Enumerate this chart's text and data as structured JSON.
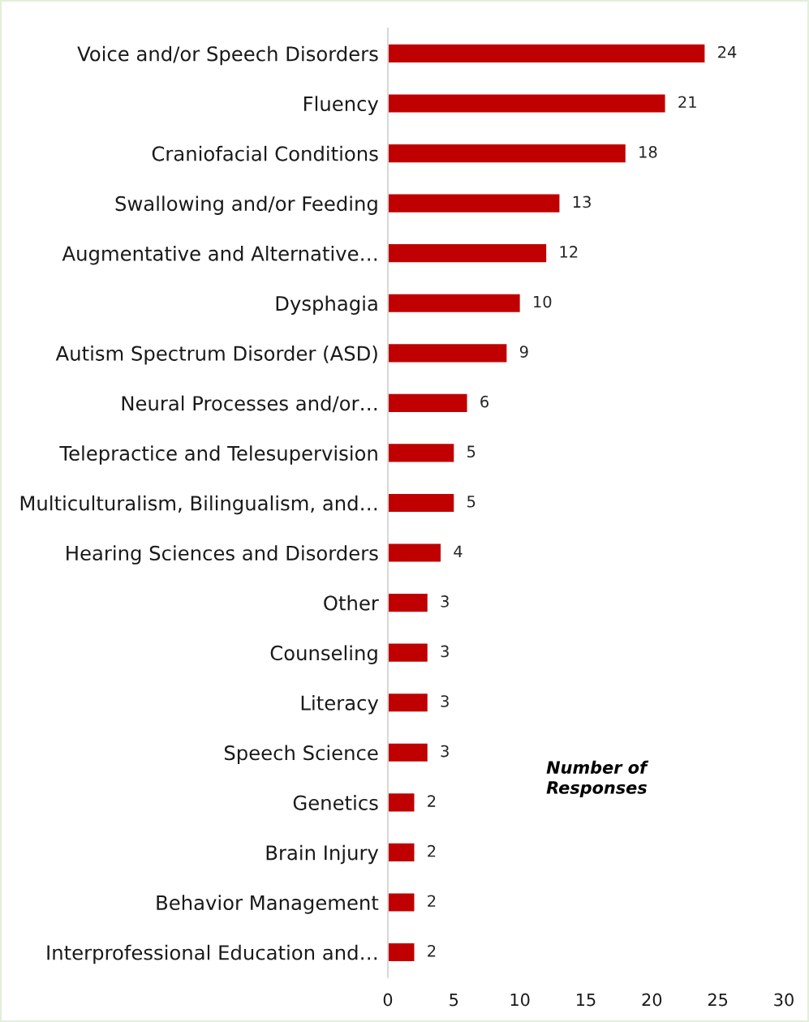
{
  "chart_data": {
    "type": "bar",
    "orientation": "horizontal",
    "xlabel": "Number of\nResponses",
    "categories": [
      "Voice and/or Speech Disorders",
      "Fluency",
      "Craniofacial Conditions",
      "Swallowing and/or Feeding",
      "Augmentative and Alternative…",
      "Dysphagia",
      "Autism Spectrum Disorder (ASD)",
      "Neural Processes and/or…",
      "Telepractice and Telesupervision",
      "Multiculturalism, Bilingualism, and…",
      "Hearing Sciences and Disorders",
      "Other",
      "Counseling",
      "Literacy",
      "Speech Science",
      "Genetics",
      "Brain Injury",
      "Behavior Management",
      "Interprofessional Education and…"
    ],
    "values": [
      24,
      21,
      18,
      13,
      12,
      10,
      9,
      6,
      5,
      5,
      4,
      3,
      3,
      3,
      3,
      2,
      2,
      2,
      2
    ],
    "color": "#c00000",
    "xlim": [
      0,
      30
    ],
    "xticks": [
      0,
      5,
      10,
      15,
      20,
      25,
      30
    ],
    "data_labels": true
  }
}
